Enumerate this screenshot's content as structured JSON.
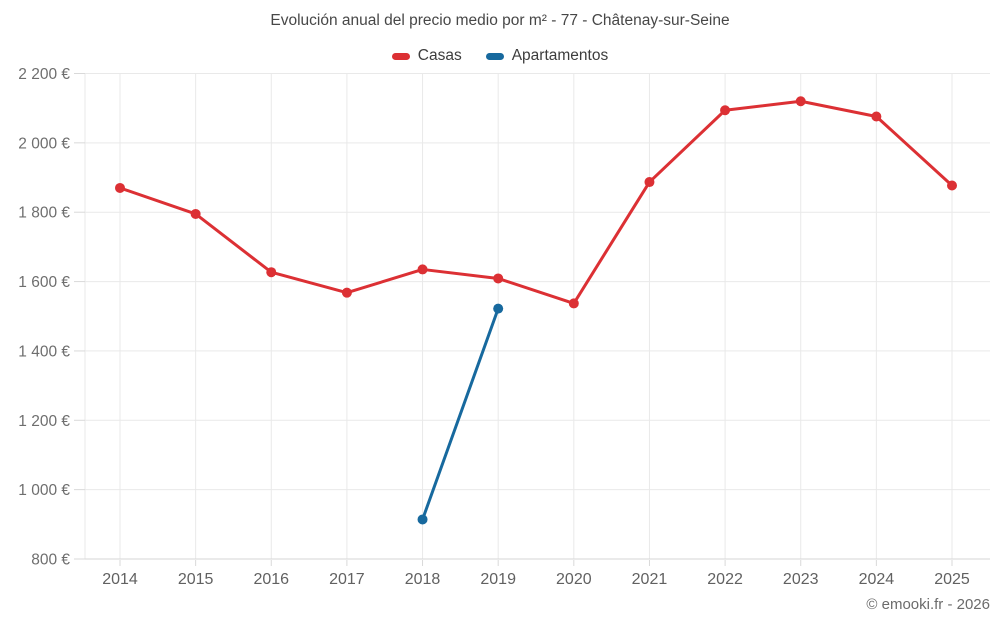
{
  "header": {
    "title": "Evolución anual del precio medio por m² - 77 - Châtenay-sur-Seine"
  },
  "footer": {
    "copyright": "© emooki.fr - 2026"
  },
  "chart_data": {
    "type": "line",
    "title": "Evolución anual del precio medio por m² - 77 - Châtenay-sur-Seine",
    "categories": [
      "2014",
      "2015",
      "2016",
      "2017",
      "2018",
      "2019",
      "2020",
      "2021",
      "2022",
      "2023",
      "2024",
      "2025"
    ],
    "series": [
      {
        "name": "Casas",
        "color": "#dc3034",
        "values": [
          1870,
          1795,
          1627,
          1568,
          1635,
          1609,
          1537,
          1887,
          2094,
          2120,
          2076,
          1877
        ]
      },
      {
        "name": "Apartamentos",
        "color": "#17699e",
        "values": [
          null,
          null,
          null,
          null,
          914,
          1522,
          null,
          null,
          null,
          null,
          null,
          null
        ]
      }
    ],
    "xlabel": "",
    "ylabel": "",
    "ylim": [
      800,
      2200
    ],
    "ytick_step": 200,
    "ytick_suffix": " €",
    "grid": true,
    "legend_position": "top",
    "colors": {
      "grid": "#e9e9e9",
      "axis": "#d6d6d6",
      "tick": "#d9d9d9",
      "tick_label": "#6e6e6e"
    }
  }
}
